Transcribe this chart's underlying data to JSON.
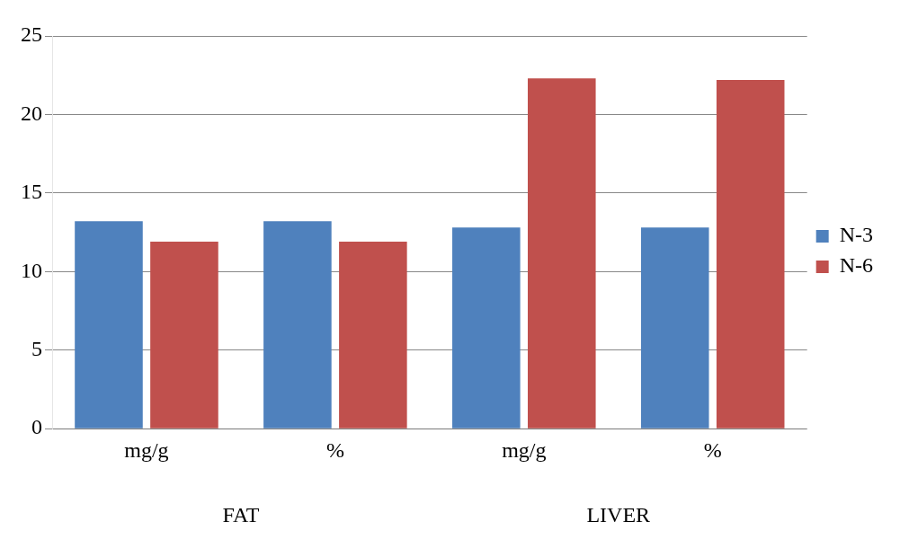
{
  "chart_data": {
    "type": "bar",
    "categories": [
      "mg/g",
      "%",
      "mg/g",
      "%"
    ],
    "series": [
      {
        "name": "N-3",
        "color": "#4f81bd",
        "values": [
          13.2,
          13.2,
          12.8,
          12.8
        ]
      },
      {
        "name": "N-6",
        "color": "#c0504d",
        "values": [
          11.9,
          11.9,
          22.3,
          22.2
        ]
      }
    ],
    "ylim": [
      0,
      25
    ],
    "yticks": [
      0,
      5,
      10,
      15,
      20,
      25
    ],
    "grid": "y",
    "legend": "right",
    "annotations": [
      "FAT",
      "LIVER"
    ]
  }
}
